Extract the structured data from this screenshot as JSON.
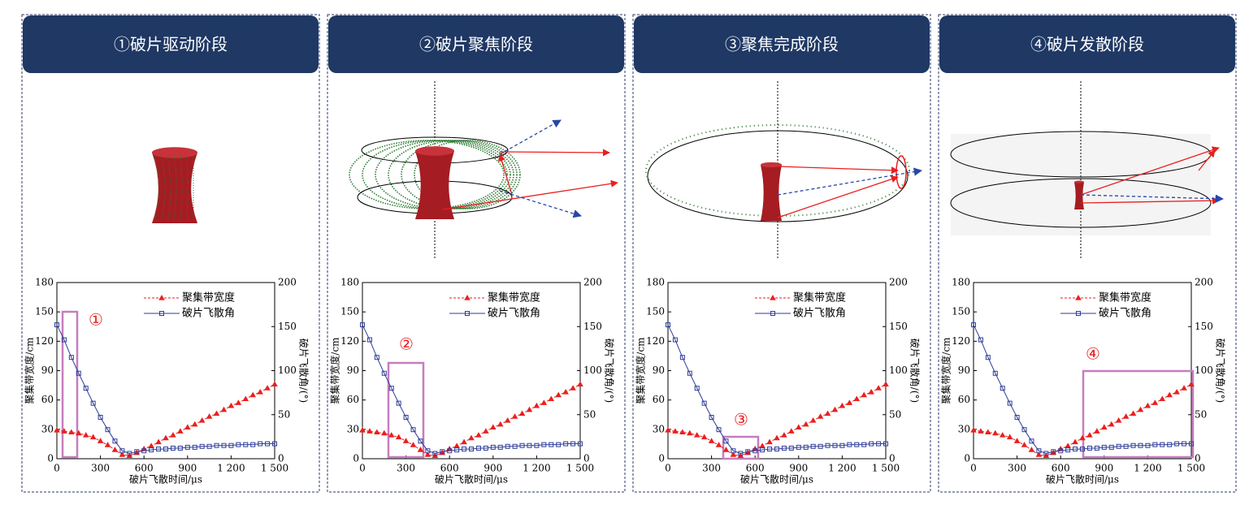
{
  "chart_data": [
    {
      "type": "line",
      "title": "①破片驱动阶段",
      "xlabel": "破片飞散时间/μs",
      "ylabel": "聚集带宽度/cm",
      "y2label": "破片飞散角/(°)",
      "annotation": "①",
      "x": [
        0,
        50,
        100,
        150,
        200,
        250,
        300,
        350,
        400,
        450,
        500,
        550,
        600,
        650,
        700,
        750,
        800,
        850,
        900,
        950,
        1000,
        1050,
        1100,
        1150,
        1200,
        1250,
        1300,
        1350,
        1400,
        1450,
        1500
      ],
      "series": [
        {
          "name": "聚集带宽度",
          "color": "#e8201e",
          "values": [
            29,
            28,
            27,
            26,
            24,
            22,
            18,
            14,
            9,
            4,
            3,
            6,
            10,
            13,
            17,
            21,
            24,
            28,
            32,
            35,
            39,
            43,
            46,
            50,
            54,
            57,
            61,
            65,
            68,
            72,
            76
          ]
        },
        {
          "name": "破片飞散角",
          "color": "#2e3d99",
          "axis": "y2",
          "values": [
            152,
            135,
            115,
            97,
            80,
            63,
            47,
            33,
            20,
            9,
            6,
            8,
            9,
            10,
            11,
            11,
            12,
            12,
            13,
            13,
            14,
            14,
            15,
            15,
            15,
            16,
            16,
            16,
            17,
            17,
            17
          ]
        }
      ],
      "xlim": [
        0,
        1500
      ],
      "xticks": [
        0,
        300,
        600,
        900,
        {
          "value": 1200,
          "label": "1 200"
        },
        {
          "value": 1500,
          "label": "1 500"
        }
      ],
      "ylim": [
        0,
        180
      ],
      "yticks": [
        0,
        30,
        60,
        90,
        120,
        150,
        180
      ],
      "y2lim": [
        0,
        200
      ],
      "y2ticks": [
        0,
        50,
        100,
        150,
        200
      ]
    },
    {
      "type": "line",
      "title": "②破片聚焦阶段",
      "xlabel": "破片飞散时间/μs",
      "ylabel": "聚集带宽度/cm",
      "y2label": "破片飞散角/(°)",
      "annotation": "②",
      "x": [
        0,
        50,
        100,
        150,
        200,
        250,
        300,
        350,
        400,
        450,
        500,
        550,
        600,
        650,
        700,
        750,
        800,
        850,
        900,
        950,
        1000,
        1050,
        1100,
        1150,
        1200,
        1250,
        1300,
        1350,
        1400,
        1450,
        1500
      ],
      "series": [
        {
          "name": "聚集带宽度",
          "color": "#e8201e",
          "values": [
            29,
            28,
            27,
            26,
            24,
            22,
            18,
            14,
            9,
            4,
            3,
            6,
            10,
            13,
            17,
            21,
            24,
            28,
            32,
            35,
            39,
            43,
            46,
            50,
            54,
            57,
            61,
            65,
            68,
            72,
            76
          ]
        },
        {
          "name": "破片飞散角",
          "color": "#2e3d99",
          "axis": "y2",
          "values": [
            152,
            135,
            115,
            97,
            80,
            63,
            47,
            33,
            20,
            9,
            6,
            8,
            9,
            10,
            11,
            11,
            12,
            12,
            13,
            13,
            14,
            14,
            15,
            15,
            15,
            16,
            16,
            16,
            17,
            17,
            17
          ]
        }
      ],
      "xlim": [
        0,
        1500
      ],
      "xticks": [
        0,
        300,
        600,
        900,
        {
          "value": 1200,
          "label": "1 200"
        },
        {
          "value": 1500,
          "label": "1 500"
        }
      ],
      "ylim": [
        0,
        180
      ],
      "yticks": [
        0,
        30,
        60,
        90,
        120,
        150,
        180
      ],
      "y2lim": [
        0,
        200
      ],
      "y2ticks": [
        0,
        50,
        100,
        150,
        200
      ]
    },
    {
      "type": "line",
      "title": "③聚焦完成阶段",
      "xlabel": "破片飞散时间/μs",
      "ylabel": "聚集带宽度/cm",
      "y2label": "破片飞散角/(°)",
      "annotation": "③",
      "x": [
        0,
        50,
        100,
        150,
        200,
        250,
        300,
        350,
        400,
        450,
        500,
        550,
        600,
        650,
        700,
        750,
        800,
        850,
        900,
        950,
        1000,
        1050,
        1100,
        1150,
        1200,
        1250,
        1300,
        1350,
        1400,
        1450,
        1500
      ],
      "series": [
        {
          "name": "聚集带宽度",
          "color": "#e8201e",
          "values": [
            29,
            28,
            27,
            26,
            24,
            22,
            18,
            14,
            9,
            4,
            3,
            6,
            10,
            13,
            17,
            21,
            24,
            28,
            32,
            35,
            39,
            43,
            46,
            50,
            54,
            57,
            61,
            65,
            68,
            72,
            76
          ]
        },
        {
          "name": "破片飞散角",
          "color": "#2e3d99",
          "axis": "y2",
          "values": [
            152,
            135,
            115,
            97,
            80,
            63,
            47,
            33,
            20,
            9,
            6,
            8,
            9,
            10,
            11,
            11,
            12,
            12,
            13,
            13,
            14,
            14,
            15,
            15,
            15,
            16,
            16,
            16,
            17,
            17,
            17
          ]
        }
      ],
      "xlim": [
        0,
        1500
      ],
      "xticks": [
        0,
        300,
        600,
        900,
        {
          "value": 1200,
          "label": "1 200"
        },
        {
          "value": 1500,
          "label": "1 500"
        }
      ],
      "ylim": [
        0,
        180
      ],
      "yticks": [
        0,
        30,
        60,
        90,
        120,
        150,
        180
      ],
      "y2lim": [
        0,
        200
      ],
      "y2ticks": [
        0,
        50,
        100,
        150,
        200
      ]
    },
    {
      "type": "line",
      "title": "④破片发散阶段",
      "xlabel": "破片飞散时间/μs",
      "ylabel": "聚集带宽度/cm",
      "y2label": "破片飞散角/(°)",
      "annotation": "④",
      "x": [
        0,
        50,
        100,
        150,
        200,
        250,
        300,
        350,
        400,
        450,
        500,
        550,
        600,
        650,
        700,
        750,
        800,
        850,
        900,
        950,
        1000,
        1050,
        1100,
        1150,
        1200,
        1250,
        1300,
        1350,
        1400,
        1450,
        1500
      ],
      "series": [
        {
          "name": "聚集带宽度",
          "color": "#e8201e",
          "values": [
            29,
            28,
            27,
            26,
            24,
            22,
            18,
            14,
            9,
            4,
            3,
            6,
            10,
            13,
            17,
            21,
            24,
            28,
            32,
            35,
            39,
            43,
            46,
            50,
            54,
            57,
            61,
            65,
            68,
            72,
            76
          ]
        },
        {
          "name": "破片飞散角",
          "color": "#2e3d99",
          "axis": "y2",
          "values": [
            152,
            135,
            115,
            97,
            80,
            63,
            47,
            33,
            20,
            9,
            6,
            8,
            9,
            10,
            11,
            11,
            12,
            12,
            13,
            13,
            14,
            14,
            15,
            15,
            15,
            16,
            16,
            16,
            17,
            17,
            17
          ]
        }
      ],
      "xlim": [
        0,
        1500
      ],
      "xticks": [
        0,
        300,
        600,
        900,
        {
          "value": 1200,
          "label": "1 200"
        },
        {
          "value": 1500,
          "label": "1 500"
        }
      ],
      "ylim": [
        0,
        180
      ],
      "yticks": [
        0,
        30,
        60,
        90,
        120,
        150,
        180
      ],
      "y2lim": [
        0,
        200
      ],
      "y2ticks": [
        0,
        50,
        100,
        150,
        200
      ]
    }
  ]
}
